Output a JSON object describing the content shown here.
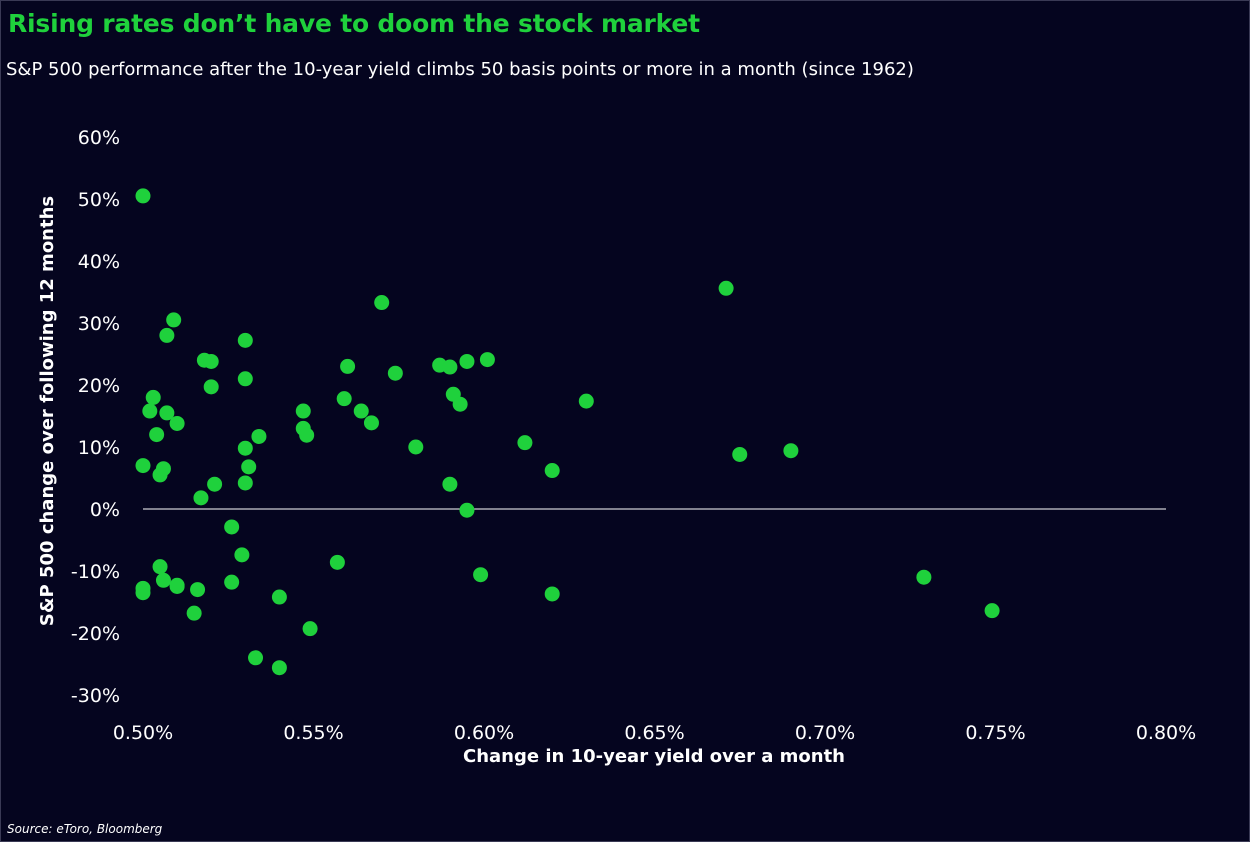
{
  "header": {
    "title": "Rising rates don’t have to doom the stock market",
    "subtitle": "S&P 500 performance after the 10-year yield climbs 50 basis points or more in a month (since 1962)"
  },
  "footer": {
    "source": "Source: eToro, Bloomberg"
  },
  "colors": {
    "background": "#05051f",
    "title": "#1fd13c",
    "point": "#1fd13c",
    "text": "#ffffff",
    "zero_line": "#ffffff"
  },
  "chart_data": {
    "type": "scatter",
    "title": "Rising rates don’t have to doom the stock market",
    "subtitle": "S&P 500 performance after the 10-year yield climbs 50 basis points or more in a month (since 1962)",
    "xlabel": "Change in 10-year yield over a month",
    "ylabel": "S&P 500 change over following 12 months",
    "xlim": [
      0.5,
      0.8
    ],
    "ylim": [
      -30,
      60
    ],
    "x_ticks": [
      "0.50%",
      "0.55%",
      "0.60%",
      "0.65%",
      "0.70%",
      "0.75%",
      "0.80%"
    ],
    "y_ticks": [
      "60%",
      "50%",
      "40%",
      "30%",
      "20%",
      "10%",
      "0%",
      "-10%",
      "-20%",
      "-30%"
    ],
    "grid": false,
    "legend": "none",
    "zero_line": true,
    "points": [
      [
        0.5,
        50.5
      ],
      [
        0.5,
        7.0
      ],
      [
        0.5,
        -12.8
      ],
      [
        0.5,
        -13.5
      ],
      [
        0.502,
        15.8
      ],
      [
        0.503,
        18.0
      ],
      [
        0.504,
        12.0
      ],
      [
        0.505,
        5.5
      ],
      [
        0.505,
        -9.3
      ],
      [
        0.506,
        6.5
      ],
      [
        0.506,
        -11.5
      ],
      [
        0.507,
        15.5
      ],
      [
        0.507,
        28.0
      ],
      [
        0.509,
        30.5
      ],
      [
        0.51,
        13.8
      ],
      [
        0.51,
        -12.3
      ],
      [
        0.51,
        -12.5
      ],
      [
        0.515,
        -16.8
      ],
      [
        0.516,
        -13.0
      ],
      [
        0.517,
        1.8
      ],
      [
        0.518,
        24.0
      ],
      [
        0.52,
        23.8
      ],
      [
        0.52,
        19.7
      ],
      [
        0.521,
        4.0
      ],
      [
        0.526,
        -2.9
      ],
      [
        0.526,
        -11.8
      ],
      [
        0.529,
        -7.4
      ],
      [
        0.53,
        27.2
      ],
      [
        0.53,
        21.0
      ],
      [
        0.53,
        9.8
      ],
      [
        0.53,
        4.2
      ],
      [
        0.531,
        6.8
      ],
      [
        0.533,
        -24.0
      ],
      [
        0.534,
        11.7
      ],
      [
        0.54,
        -14.2
      ],
      [
        0.54,
        -25.6
      ],
      [
        0.547,
        15.8
      ],
      [
        0.547,
        13.0
      ],
      [
        0.548,
        11.9
      ],
      [
        0.549,
        -19.3
      ],
      [
        0.557,
        -8.6
      ],
      [
        0.559,
        17.8
      ],
      [
        0.56,
        23.0
      ],
      [
        0.564,
        15.8
      ],
      [
        0.567,
        13.9
      ],
      [
        0.57,
        33.3
      ],
      [
        0.574,
        21.9
      ],
      [
        0.58,
        10.0
      ],
      [
        0.587,
        23.2
      ],
      [
        0.59,
        22.9
      ],
      [
        0.59,
        4.0
      ],
      [
        0.591,
        18.5
      ],
      [
        0.593,
        16.9
      ],
      [
        0.595,
        23.8
      ],
      [
        0.595,
        -0.2
      ],
      [
        0.599,
        -10.6
      ],
      [
        0.601,
        24.1
      ],
      [
        0.612,
        10.7
      ],
      [
        0.62,
        6.2
      ],
      [
        0.62,
        -13.7
      ],
      [
        0.63,
        17.4
      ],
      [
        0.671,
        35.6
      ],
      [
        0.675,
        8.8
      ],
      [
        0.69,
        9.4
      ],
      [
        0.729,
        -11.0
      ],
      [
        0.749,
        -16.4
      ]
    ]
  }
}
